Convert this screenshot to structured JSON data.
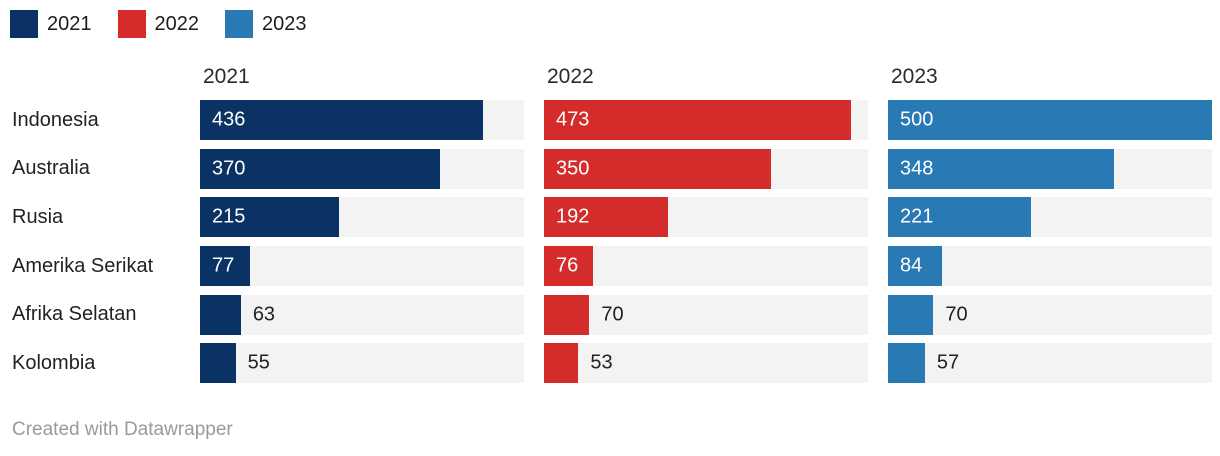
{
  "chart_data": {
    "type": "bar",
    "variant": "split-bars",
    "title": "",
    "categories": [
      "Indonesia",
      "Australia",
      "Rusia",
      "Amerika Serikat",
      "Afrika Selatan",
      "Kolombia"
    ],
    "series": [
      {
        "name": "2021",
        "color": "#0b3264",
        "values": [
          436,
          370,
          215,
          77,
          63,
          55
        ]
      },
      {
        "name": "2022",
        "color": "#d32c2a",
        "values": [
          473,
          350,
          192,
          76,
          70,
          53
        ]
      },
      {
        "name": "2023",
        "color": "#2879b4",
        "values": [
          500,
          348,
          221,
          84,
          70,
          57
        ]
      }
    ],
    "xmax": 500,
    "track_color": "#f3f3f3",
    "inside_label_threshold_ratio": 0.15,
    "legend_position": "top-left",
    "grid": "off"
  },
  "footer": {
    "text": "Created with Datawrapper"
  }
}
